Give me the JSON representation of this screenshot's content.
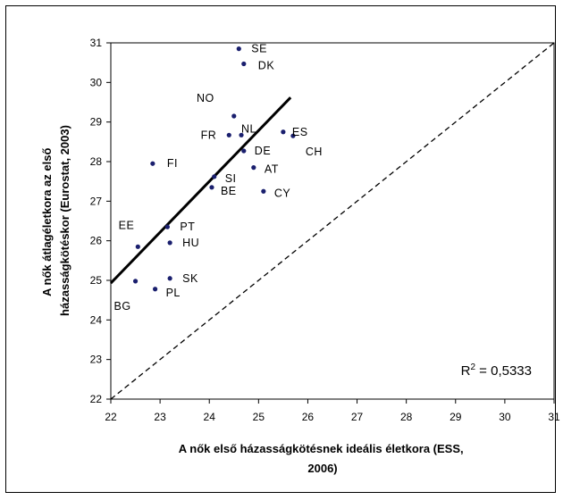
{
  "chart_data": {
    "type": "scatter",
    "title": "",
    "xlabel_lines": [
      "A nők első házasságkötésnek ideális életkora (ESS,",
      "2006)"
    ],
    "ylabel_lines": [
      "A nők átlagéletkora az első",
      "házasságkötéskor (Eurostat, 2003)"
    ],
    "xlim": [
      22,
      31
    ],
    "ylim": [
      22,
      31
    ],
    "xticks": [
      22,
      23,
      24,
      25,
      26,
      27,
      28,
      29,
      30,
      31
    ],
    "yticks": [
      22,
      23,
      24,
      25,
      26,
      27,
      28,
      29,
      30,
      31
    ],
    "points": [
      {
        "label": "SE",
        "x": 24.6,
        "y": 30.85
      },
      {
        "label": "DK",
        "x": 24.7,
        "y": 30.47
      },
      {
        "label": "NO",
        "x": 24.5,
        "y": 29.15
      },
      {
        "label": "NL",
        "x": 24.65,
        "y": 28.67
      },
      {
        "label": "FR",
        "x": 24.4,
        "y": 28.67
      },
      {
        "label": "ES",
        "x": 25.5,
        "y": 28.75
      },
      {
        "label": "CH",
        "x": 25.7,
        "y": 28.65
      },
      {
        "label": "DE",
        "x": 24.7,
        "y": 28.27
      },
      {
        "label": "FI",
        "x": 22.85,
        "y": 27.95
      },
      {
        "label": "AT",
        "x": 24.9,
        "y": 27.85
      },
      {
        "label": "SI",
        "x": 24.1,
        "y": 27.62
      },
      {
        "label": "BE",
        "x": 24.05,
        "y": 27.35
      },
      {
        "label": "CY",
        "x": 25.1,
        "y": 27.25
      },
      {
        "label": "PT",
        "x": 23.15,
        "y": 26.35
      },
      {
        "label": "EE",
        "x": 22.55,
        "y": 25.85
      },
      {
        "label": "HU",
        "x": 23.2,
        "y": 25.95
      },
      {
        "label": "SK",
        "x": 23.2,
        "y": 25.05
      },
      {
        "label": "BG",
        "x": 22.5,
        "y": 24.98
      },
      {
        "label": "PL",
        "x": 22.9,
        "y": 24.78
      }
    ],
    "trendline": {
      "x1": 22,
      "y1": 24.93,
      "x2": 25.65,
      "y2": 29.62
    },
    "reference_line": {
      "x1": 22,
      "y1": 22,
      "x2": 31,
      "y2": 31
    },
    "annotation": {
      "prefix": "R",
      "sup": "2",
      "suffix": " = 0,5333"
    },
    "grid": false,
    "legend": "none",
    "colors": {
      "point": "#1a1f6e",
      "line": "#000000"
    }
  }
}
